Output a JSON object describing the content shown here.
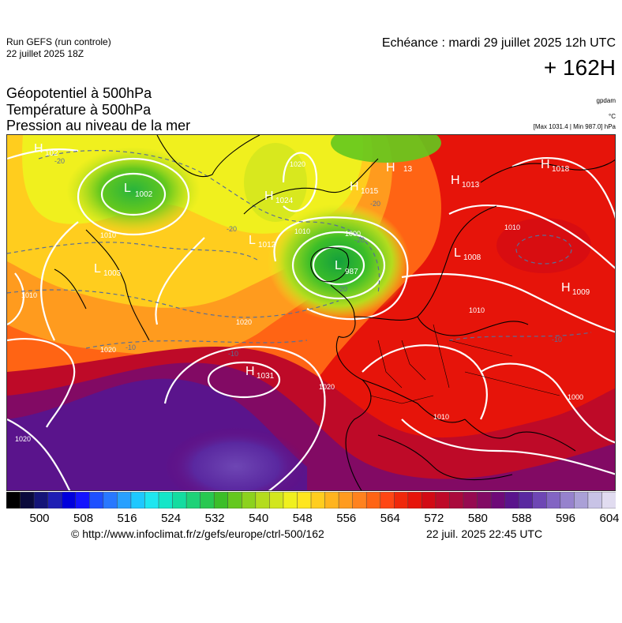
{
  "header": {
    "run_title": "Run GEFS (run controle)",
    "run_date": "22 juillet 2025 18Z",
    "valid_time": "Echéance : mardi 29 juillet 2025 12h UTC",
    "lead_time": "+ 162H"
  },
  "params": {
    "line1": "Géopotentiel à 500hPa",
    "line2": "Température à 500hPa",
    "line3": "Pression au niveau de la mer"
  },
  "units": {
    "geopotential": "gpdam",
    "temperature": "°C",
    "minmax": "[Max 1031.4 | Min 987.0] hPa"
  },
  "map": {
    "region": "Europe / North Atlantic",
    "pressure_centres": [
      {
        "type": "H",
        "value": "102",
        "where": "south of Greenland (west edge)"
      },
      {
        "type": "L",
        "value": "1002",
        "where": "Labrador / Baffin area"
      },
      {
        "type": "H",
        "value": "1024",
        "where": "southern Greenland"
      },
      {
        "type": "H",
        "value": "1015",
        "where": "Iceland - Norwegian sea"
      },
      {
        "type": "H",
        "value": "13",
        "where": "Norwegian sea"
      },
      {
        "type": "H",
        "value": "1018",
        "where": "Barents sea"
      },
      {
        "type": "H",
        "value": "1013",
        "where": "Scandinavia north"
      },
      {
        "type": "L",
        "value": "1012",
        "where": "between Greenland and Iceland"
      },
      {
        "type": "L",
        "value": "987",
        "where": "north of Scotland"
      },
      {
        "type": "L",
        "value": "1003",
        "where": "Newfoundland"
      },
      {
        "type": "L",
        "value": "1008",
        "where": "Baltic / Finland"
      },
      {
        "type": "H",
        "value": "1009",
        "where": "western Russia"
      },
      {
        "type": "H",
        "value": "1031",
        "where": "Azores"
      }
    ],
    "isobar_labels": [
      "1020",
      "1010",
      "1000",
      "1010",
      "1010",
      "1020",
      "1020",
      "1020",
      "1010",
      "1000",
      "1010",
      "1020",
      "1010",
      "1020",
      "1010"
    ],
    "isotherm_labels": [
      "-20",
      "-20",
      "-20",
      "-20",
      "-20",
      "-10",
      "-10",
      "-10"
    ]
  },
  "colorbar": {
    "colors": [
      "#000000",
      "#0a0a3c",
      "#141478",
      "#1e1eb4",
      "#0000dc",
      "#1414ff",
      "#1e50ff",
      "#2878ff",
      "#28a0ff",
      "#1ec8ff",
      "#1ee6f0",
      "#14e6c8",
      "#14dca0",
      "#1ed278",
      "#28c850",
      "#3cbe28",
      "#64c81e",
      "#8cd21e",
      "#b4dc1e",
      "#d2e61e",
      "#f0f01e",
      "#ffe61e",
      "#ffcd1e",
      "#ffb41e",
      "#ff9b1e",
      "#ff821e",
      "#ff6414",
      "#ff4614",
      "#f0280a",
      "#e6140a",
      "#d20a14",
      "#be0a28",
      "#aa0a3c",
      "#960a50",
      "#820a64",
      "#6e0a78",
      "#5a148c",
      "#5a28a0",
      "#6e46b4",
      "#8264c3",
      "#9682cd",
      "#aaa0d7",
      "#c8c3e6",
      "#e1dcf0"
    ],
    "labels": [
      "500",
      "508",
      "516",
      "524",
      "532",
      "540",
      "548",
      "556",
      "564",
      "572",
      "580",
      "588",
      "596",
      "604"
    ]
  },
  "footer": {
    "url": "© http://www.infoclimat.fr/z/gefs/europe/ctrl-500/162",
    "timestamp": "22 juil. 2025 22:45 UTC"
  }
}
